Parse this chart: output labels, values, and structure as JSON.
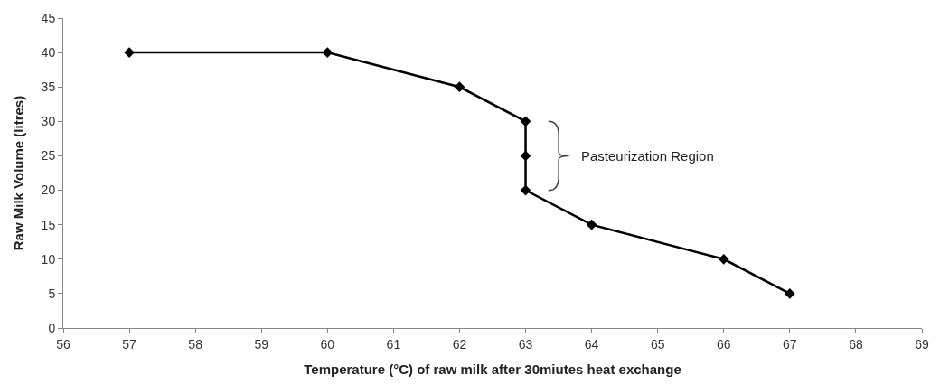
{
  "chart_data": {
    "type": "line",
    "xlabel": "Temperature (°C) of raw milk after 30miutes heat exchange",
    "ylabel": "Raw Milk Volume (litres)",
    "x": [
      57,
      60,
      62,
      63,
      63,
      63,
      64,
      66,
      67
    ],
    "series": [
      {
        "color": "#000000",
        "values": [
          40,
          40,
          35,
          30,
          25,
          20,
          15,
          10,
          5
        ]
      }
    ],
    "xlim": [
      56,
      69
    ],
    "xticks": [
      56,
      57,
      58,
      59,
      60,
      61,
      62,
      63,
      64,
      65,
      66,
      67,
      68,
      69
    ],
    "ylim": [
      0,
      45
    ],
    "yticks": [
      0,
      5,
      10,
      15,
      20,
      25,
      30,
      35,
      40,
      45
    ],
    "marker": "diamond",
    "line_style": "solid",
    "annotations": [
      "Pasteurization Region"
    ]
  }
}
